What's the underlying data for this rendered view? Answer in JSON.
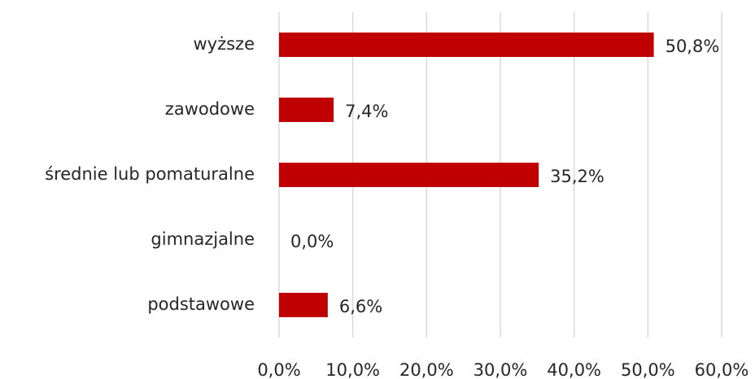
{
  "chart_data": {
    "type": "hbar",
    "categories": [
      "wyższe",
      "zawodowe",
      "średnie lub pomaturalne",
      "gimnazjalne",
      "podstawowe"
    ],
    "values": [
      50.8,
      7.4,
      35.2,
      0.0,
      6.6
    ],
    "value_labels": [
      "50,8%",
      "7,4%",
      "35,2%",
      "0,0%",
      "6,6%"
    ],
    "color": "#c00000",
    "xlim": [
      0,
      60
    ],
    "xticks": [
      {
        "value": 0,
        "label": "0,0%"
      },
      {
        "value": 10,
        "label": "10,0%"
      },
      {
        "value": 20,
        "label": "20,0%"
      },
      {
        "value": 30,
        "label": "30,0%"
      },
      {
        "value": 40,
        "label": "40,0%"
      },
      {
        "value": 50,
        "label": "50,0%"
      },
      {
        "value": 60,
        "label": "60,0%"
      }
    ],
    "grid": true
  }
}
